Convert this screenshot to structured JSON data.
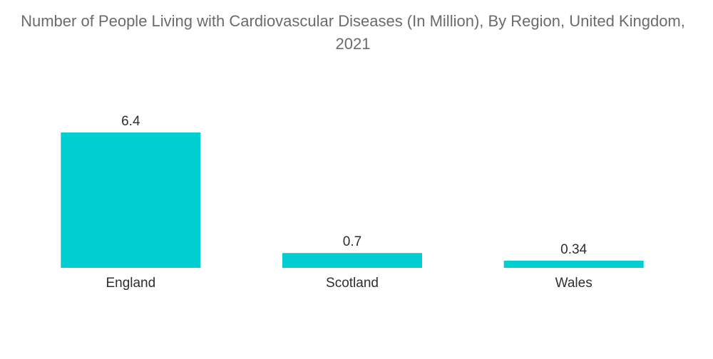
{
  "chart_data": {
    "type": "bar",
    "title": "Number of People Living with Cardiovascular Diseases (In Million), By Region, United Kingdom, 2021",
    "categories": [
      "England",
      "Scotland",
      "Wales"
    ],
    "values": [
      6.4,
      0.7,
      0.34
    ],
    "value_labels": [
      "6.4",
      "0.7",
      "0.34"
    ],
    "xlabel": "",
    "ylabel": "",
    "ylim": [
      0,
      6.4
    ],
    "grid": false,
    "legend": "none",
    "bar_color": "#00CED1"
  }
}
